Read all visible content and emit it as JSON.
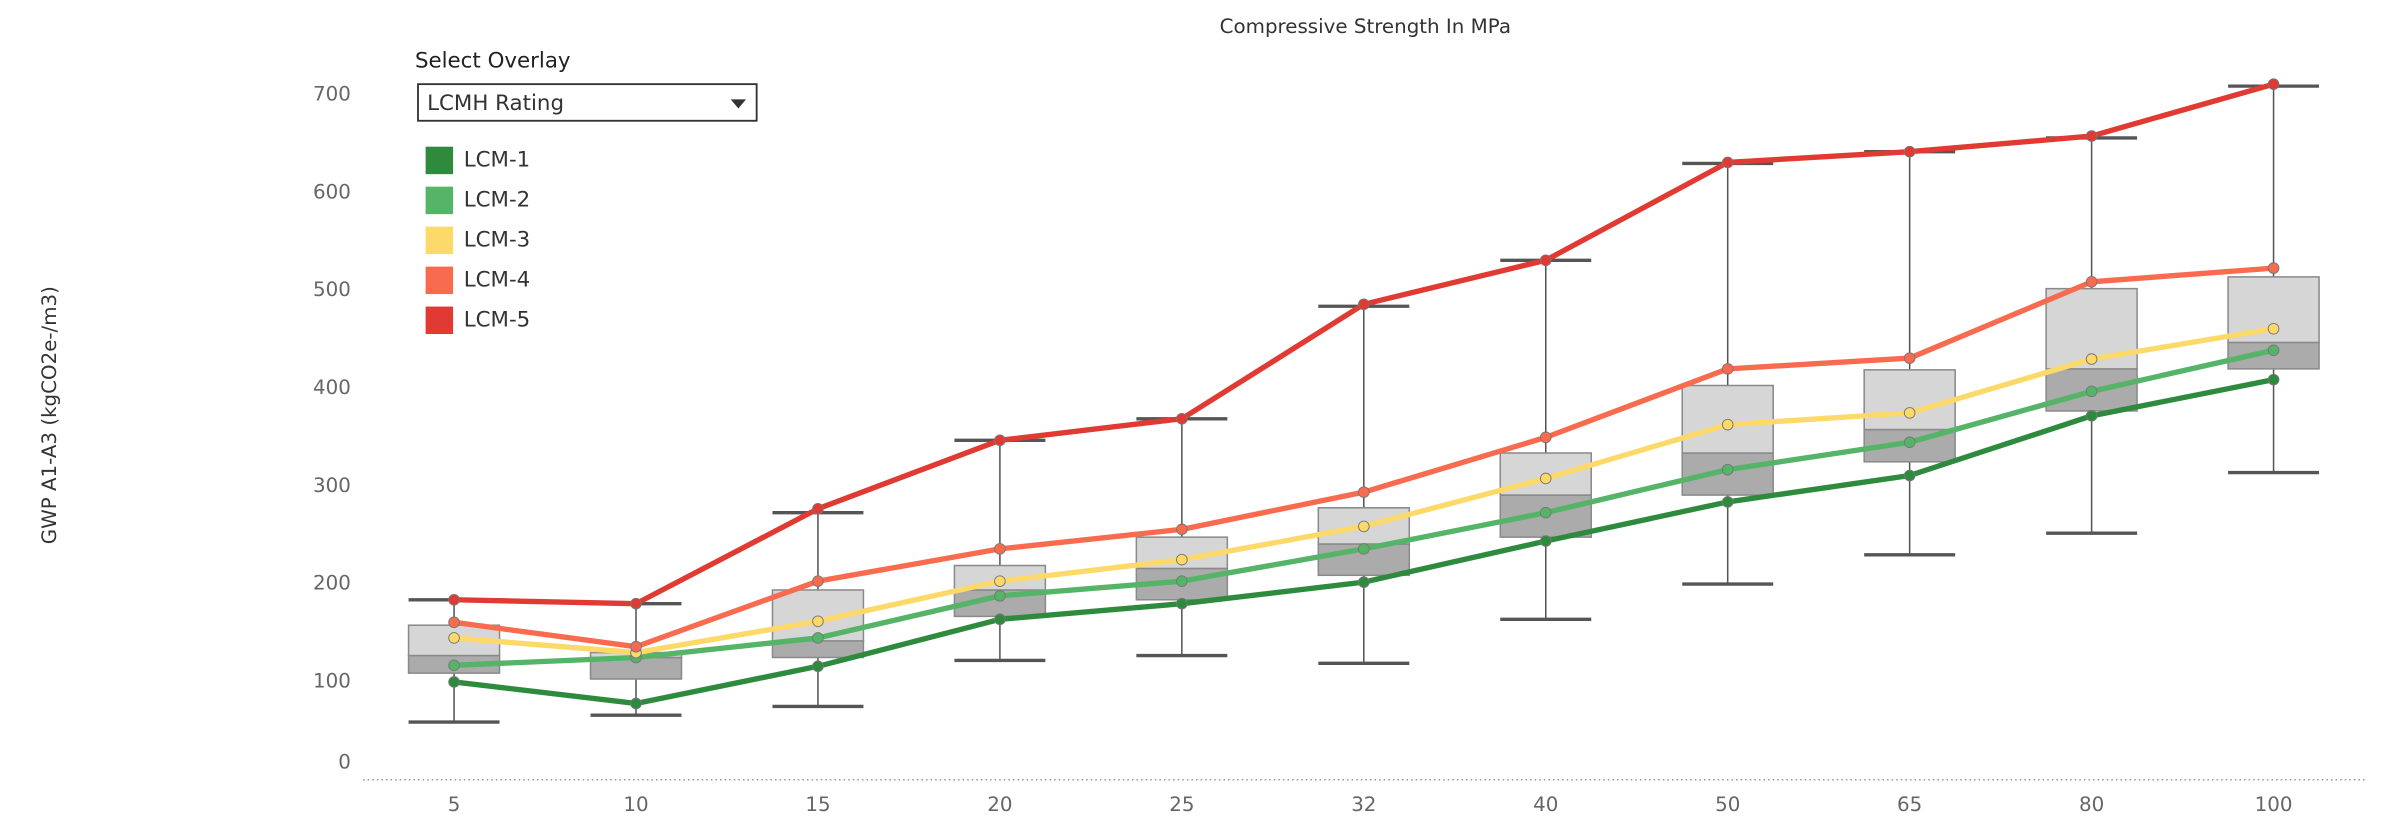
{
  "chart_data": {
    "type": "box",
    "title": "Compressive Strength In MPa",
    "y_label": "GWP A1-A3 (kgCO2e-/m3)",
    "categories": [
      "5",
      "10",
      "15",
      "20",
      "25",
      "32",
      "40",
      "50",
      "65",
      "80",
      "100"
    ],
    "boxes": {
      "whisker_low": [
        59,
        66,
        75,
        122,
        127,
        119,
        164,
        200,
        230,
        252,
        314
      ],
      "q1": [
        109,
        103,
        125,
        167,
        184,
        209,
        248,
        291,
        325,
        377,
        420
      ],
      "median": [
        127,
        125,
        142,
        194,
        216,
        241,
        291,
        334,
        358,
        420,
        447
      ],
      "q3": [
        158,
        130,
        194,
        219,
        248,
        278,
        334,
        403,
        419,
        502,
        514
      ],
      "whisker_high": [
        184,
        180,
        273,
        347,
        369,
        484,
        531,
        630,
        642,
        656,
        709
      ]
    },
    "series": [
      {
        "name": "LCM-1",
        "color": "#2e8b3e",
        "values": [
          100,
          78,
          116,
          164,
          180,
          202,
          244,
          284,
          311,
          372,
          409
        ]
      },
      {
        "name": "LCM-2",
        "color": "#55b468",
        "values": [
          117,
          125,
          145,
          188,
          203,
          236,
          273,
          317,
          345,
          397,
          439
        ]
      },
      {
        "name": "LCM-3",
        "color": "#fdd96a",
        "values": [
          145,
          130,
          162,
          203,
          225,
          259,
          308,
          363,
          375,
          430,
          461
        ]
      },
      {
        "name": "LCM-4",
        "color": "#f86b4f",
        "values": [
          161,
          136,
          203,
          236,
          256,
          294,
          350,
          420,
          431,
          509,
          523
        ]
      },
      {
        "name": "LCM-5",
        "color": "#e03a32",
        "values": [
          184,
          180,
          277,
          347,
          369,
          486,
          531,
          631,
          642,
          658,
          711
        ]
      }
    ],
    "ylim": [
      0,
      750
    ],
    "yticks": [
      0,
      100,
      200,
      300,
      400,
      500,
      600,
      700
    ],
    "grid": true,
    "legend": "top-left",
    "overlay": {
      "label": "Select Overlay",
      "selected": "LCMH Rating"
    }
  }
}
